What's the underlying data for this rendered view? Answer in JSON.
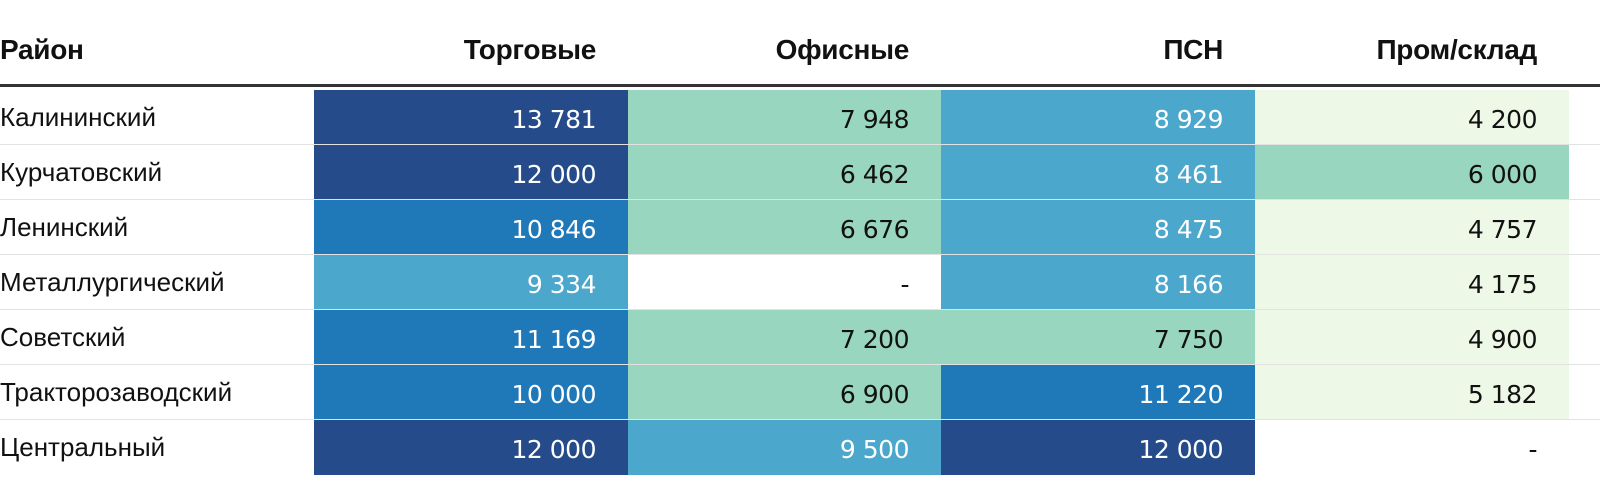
{
  "chart_data": {
    "type": "table",
    "columns": [
      "Район",
      "Торговые",
      "Офисные",
      "ПСН",
      "Пром/склад"
    ],
    "rows": [
      {
        "district": "Калининский",
        "values": [
          "13 781",
          "7 948",
          "8 929",
          "4 200"
        ]
      },
      {
        "district": "Курчатовский",
        "values": [
          "12 000",
          "6 462",
          "8 461",
          "6 000"
        ]
      },
      {
        "district": "Ленинский",
        "values": [
          "10 846",
          "6 676",
          "8 475",
          "4 757"
        ]
      },
      {
        "district": "Металлургический",
        "values": [
          "9 334",
          "-",
          "8 166",
          "4 175"
        ]
      },
      {
        "district": "Советский",
        "values": [
          "11 169",
          "7 200",
          "7 750",
          "4 900"
        ]
      },
      {
        "district": "Тракторозаводский",
        "values": [
          "10 000",
          "6 900",
          "11 220",
          "5 182"
        ]
      },
      {
        "district": "Центральный",
        "values": [
          "12 000",
          "9 500",
          "12 000",
          "-"
        ]
      }
    ],
    "color_scale": [
      {
        "min": 12000,
        "color": "#254b8a"
      },
      {
        "min": 10000,
        "color": "#1f78b8"
      },
      {
        "min": 8000,
        "color": "#4ba7cc"
      },
      {
        "min": 6000,
        "color": "#98d6c0"
      },
      {
        "min": 4000,
        "color": "#eef8e6"
      }
    ],
    "empty_color": "#ffffff",
    "light_text_color": "#ffffff",
    "dark_text_color": "#111111"
  }
}
